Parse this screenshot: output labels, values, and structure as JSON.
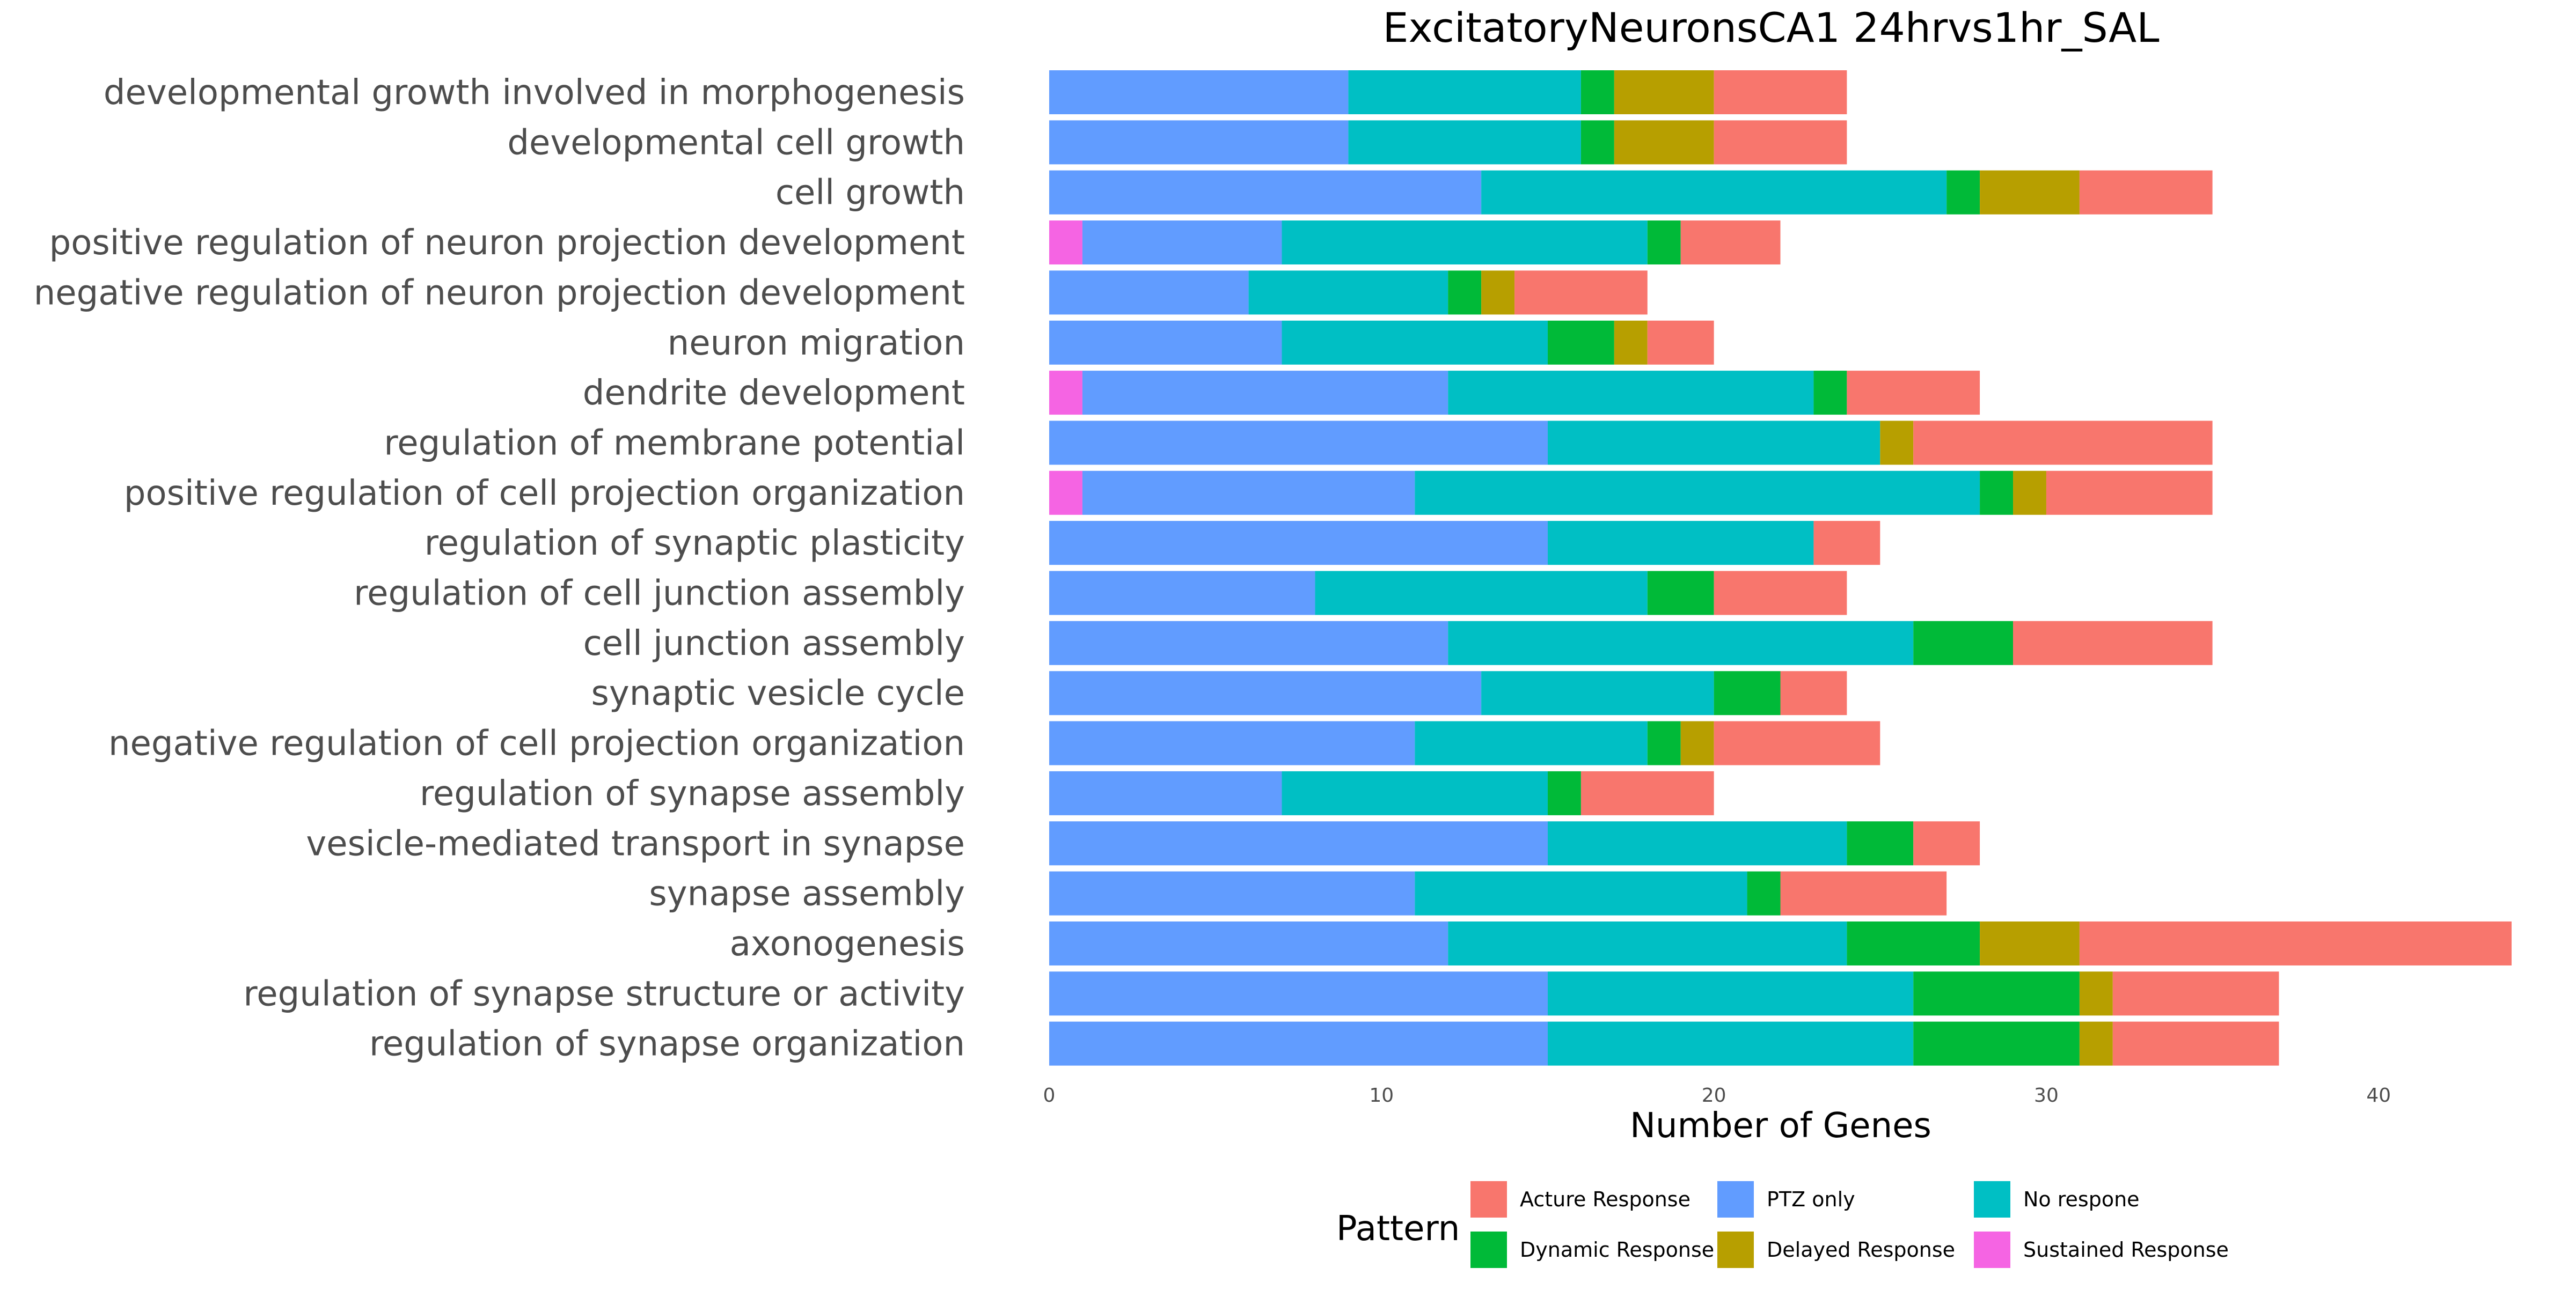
{
  "chart_data": {
    "type": "bar",
    "orientation": "horizontal",
    "stacked": true,
    "title": "ExcitatoryNeuronsCA1 24hrvs1hr_SAL",
    "xlabel": "Number of Genes",
    "ylabel": "",
    "xlim": [
      0,
      44
    ],
    "xticks": [
      0,
      10,
      20,
      30,
      40
    ],
    "grid": false,
    "legend_position": "bottom",
    "legend_title": "Pattern",
    "categories": [
      "developmental growth involved in morphogenesis",
      "developmental cell growth",
      "cell growth",
      "positive regulation of neuron projection development",
      "negative regulation of neuron projection development",
      "neuron migration",
      "dendrite development",
      "regulation of membrane potential",
      "positive regulation of cell projection organization",
      "regulation of synaptic plasticity",
      "regulation of cell junction assembly",
      "cell junction assembly",
      "synaptic vesicle cycle",
      "negative regulation of cell projection organization",
      "regulation of synapse assembly",
      "vesicle-mediated transport in synapse",
      "synapse assembly",
      "axonogenesis",
      "regulation of synapse structure or activity",
      "regulation of synapse organization"
    ],
    "stack_order": [
      "Sustained Response",
      "PTZ only",
      "No respone",
      "Dynamic Response",
      "Delayed Response",
      "Acture Response"
    ],
    "series": [
      {
        "name": "Acture Response",
        "color": "#F8766D",
        "values": [
          4,
          4,
          4,
          3,
          4,
          2,
          4,
          9,
          5,
          2,
          4,
          6,
          2,
          5,
          4,
          2,
          5,
          13,
          5,
          5
        ]
      },
      {
        "name": "Delayed Response",
        "color": "#B79F00",
        "values": [
          3,
          3,
          3,
          0,
          1,
          1,
          0,
          1,
          1,
          0,
          0,
          0,
          0,
          1,
          0,
          0,
          0,
          3,
          1,
          1
        ]
      },
      {
        "name": "Dynamic Response",
        "color": "#00BA38",
        "values": [
          1,
          1,
          1,
          1,
          1,
          2,
          1,
          0,
          1,
          0,
          2,
          3,
          2,
          1,
          1,
          2,
          1,
          4,
          5,
          5
        ]
      },
      {
        "name": "No respone",
        "color": "#00BFC4",
        "values": [
          7,
          7,
          14,
          11,
          6,
          8,
          11,
          10,
          17,
          8,
          10,
          14,
          7,
          7,
          8,
          9,
          10,
          12,
          11,
          11
        ]
      },
      {
        "name": "PTZ only",
        "color": "#619CFF",
        "values": [
          9,
          9,
          13,
          6,
          6,
          7,
          11,
          15,
          10,
          15,
          8,
          12,
          13,
          11,
          7,
          15,
          11,
          12,
          15,
          15
        ]
      },
      {
        "name": "Sustained Response",
        "color": "#F564E3",
        "values": [
          0,
          0,
          0,
          1,
          0,
          0,
          1,
          0,
          1,
          0,
          0,
          0,
          0,
          0,
          0,
          0,
          0,
          0,
          0,
          0
        ]
      }
    ],
    "legend_order": [
      "Acture Response",
      "Dynamic Response",
      "PTZ only",
      "Delayed Response",
      "No respone",
      "Sustained Response"
    ]
  }
}
